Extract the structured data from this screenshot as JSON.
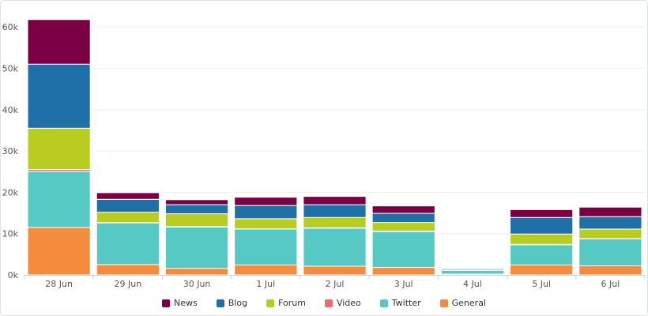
{
  "chart_data": {
    "type": "bar",
    "stacked": true,
    "categories": [
      "28 Jun",
      "29 Jun",
      "30 Jun",
      "1 Jul",
      "2 Jul",
      "3 Jul",
      "4 Jul",
      "5 Jul",
      "6 Jul"
    ],
    "ylim": [
      0,
      65000
    ],
    "yticks": [
      0,
      10000,
      20000,
      30000,
      40000,
      50000,
      60000
    ],
    "ytick_labels": [
      "0k",
      "10k",
      "20k",
      "30k",
      "40k",
      "50k",
      "60k"
    ],
    "grid": true,
    "legend_position": "bottom",
    "series": [
      {
        "name": "General",
        "color": "#f58b3c",
        "values": [
          11500,
          2500,
          1600,
          2400,
          2100,
          1800,
          200,
          2400,
          2200
        ]
      },
      {
        "name": "Twitter",
        "color": "#56c9c4",
        "values": [
          13500,
          10100,
          10000,
          8700,
          9200,
          8700,
          900,
          4900,
          6500
        ]
      },
      {
        "name": "Video",
        "color": "#f06b6b",
        "values": [
          500,
          100,
          100,
          100,
          100,
          100,
          0,
          100,
          100
        ]
      },
      {
        "name": "Forum",
        "color": "#b8cd1f",
        "values": [
          10000,
          2500,
          3100,
          2400,
          2500,
          2100,
          100,
          2500,
          2300
        ]
      },
      {
        "name": "Blog",
        "color": "#1f6fa8",
        "values": [
          15500,
          3100,
          2200,
          3200,
          3100,
          2200,
          300,
          4000,
          3000
        ]
      },
      {
        "name": "News",
        "color": "#7b0043",
        "values": [
          10800,
          1600,
          1200,
          2000,
          2000,
          1800,
          100,
          1900,
          2300
        ]
      }
    ],
    "legend_order": [
      "News",
      "Blog",
      "Forum",
      "Video",
      "Twitter",
      "General"
    ],
    "axis_color": "#c9d0d6",
    "grid_color": "#eef0f2"
  }
}
